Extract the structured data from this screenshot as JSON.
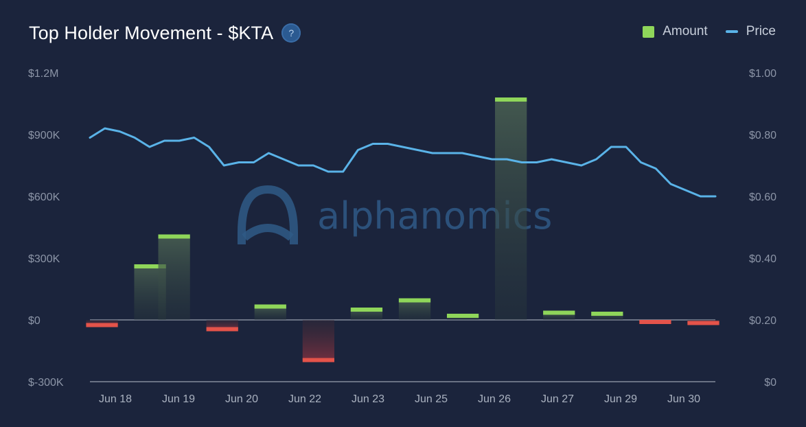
{
  "header": {
    "title": "Top Holder Movement - $KTA",
    "help_glyph": "?"
  },
  "legend": {
    "amount_label": "Amount",
    "price_label": "Price"
  },
  "watermark": {
    "text": "alphanomics"
  },
  "colors": {
    "background": "#1b243c",
    "positive": "#8fd65a",
    "negative": "#e4534a",
    "price_line": "#5ab3e8",
    "watermark": "#2f5a86"
  },
  "chart_data": {
    "type": "bar",
    "title": "Top Holder Movement - $KTA",
    "x_tick_labels": [
      "Jun 18",
      "Jun 19",
      "Jun 20",
      "Jun 22",
      "Jun 23",
      "Jun 25",
      "Jun 26",
      "Jun 27",
      "Jun 29",
      "Jun 30"
    ],
    "y_left": {
      "ticks": [
        "$1.2M",
        "$900K",
        "$600K",
        "$300K",
        "$0",
        "$-300K"
      ],
      "range": [
        -300000,
        1200000
      ]
    },
    "y_right": {
      "ticks": [
        "$1.00",
        "$0.80",
        "$0.60",
        "$0.40",
        "$0.20",
        "$0"
      ],
      "range": [
        0,
        1.0
      ]
    },
    "grid": false,
    "legend_position": "top-right",
    "series": [
      {
        "name": "Amount",
        "type": "bar",
        "values": [
          -25000,
          0,
          260000,
          405000,
          0,
          -45000,
          0,
          65000,
          0,
          -195000,
          0,
          50000,
          0,
          95000,
          0,
          20000,
          0,
          1070000,
          0,
          35000,
          0,
          30000,
          0,
          -10000,
          0,
          -15000
        ]
      },
      {
        "name": "Price",
        "type": "line",
        "values": [
          0.79,
          0.82,
          0.81,
          0.79,
          0.76,
          0.78,
          0.78,
          0.79,
          0.76,
          0.7,
          0.71,
          0.71,
          0.74,
          0.72,
          0.7,
          0.7,
          0.68,
          0.68,
          0.75,
          0.77,
          0.77,
          0.76,
          0.75,
          0.74,
          0.74,
          0.74,
          0.73,
          0.72,
          0.72,
          0.71,
          0.71,
          0.72,
          0.71,
          0.7,
          0.72,
          0.76,
          0.76,
          0.71,
          0.69,
          0.64,
          0.62,
          0.6,
          0.6
        ]
      }
    ]
  }
}
